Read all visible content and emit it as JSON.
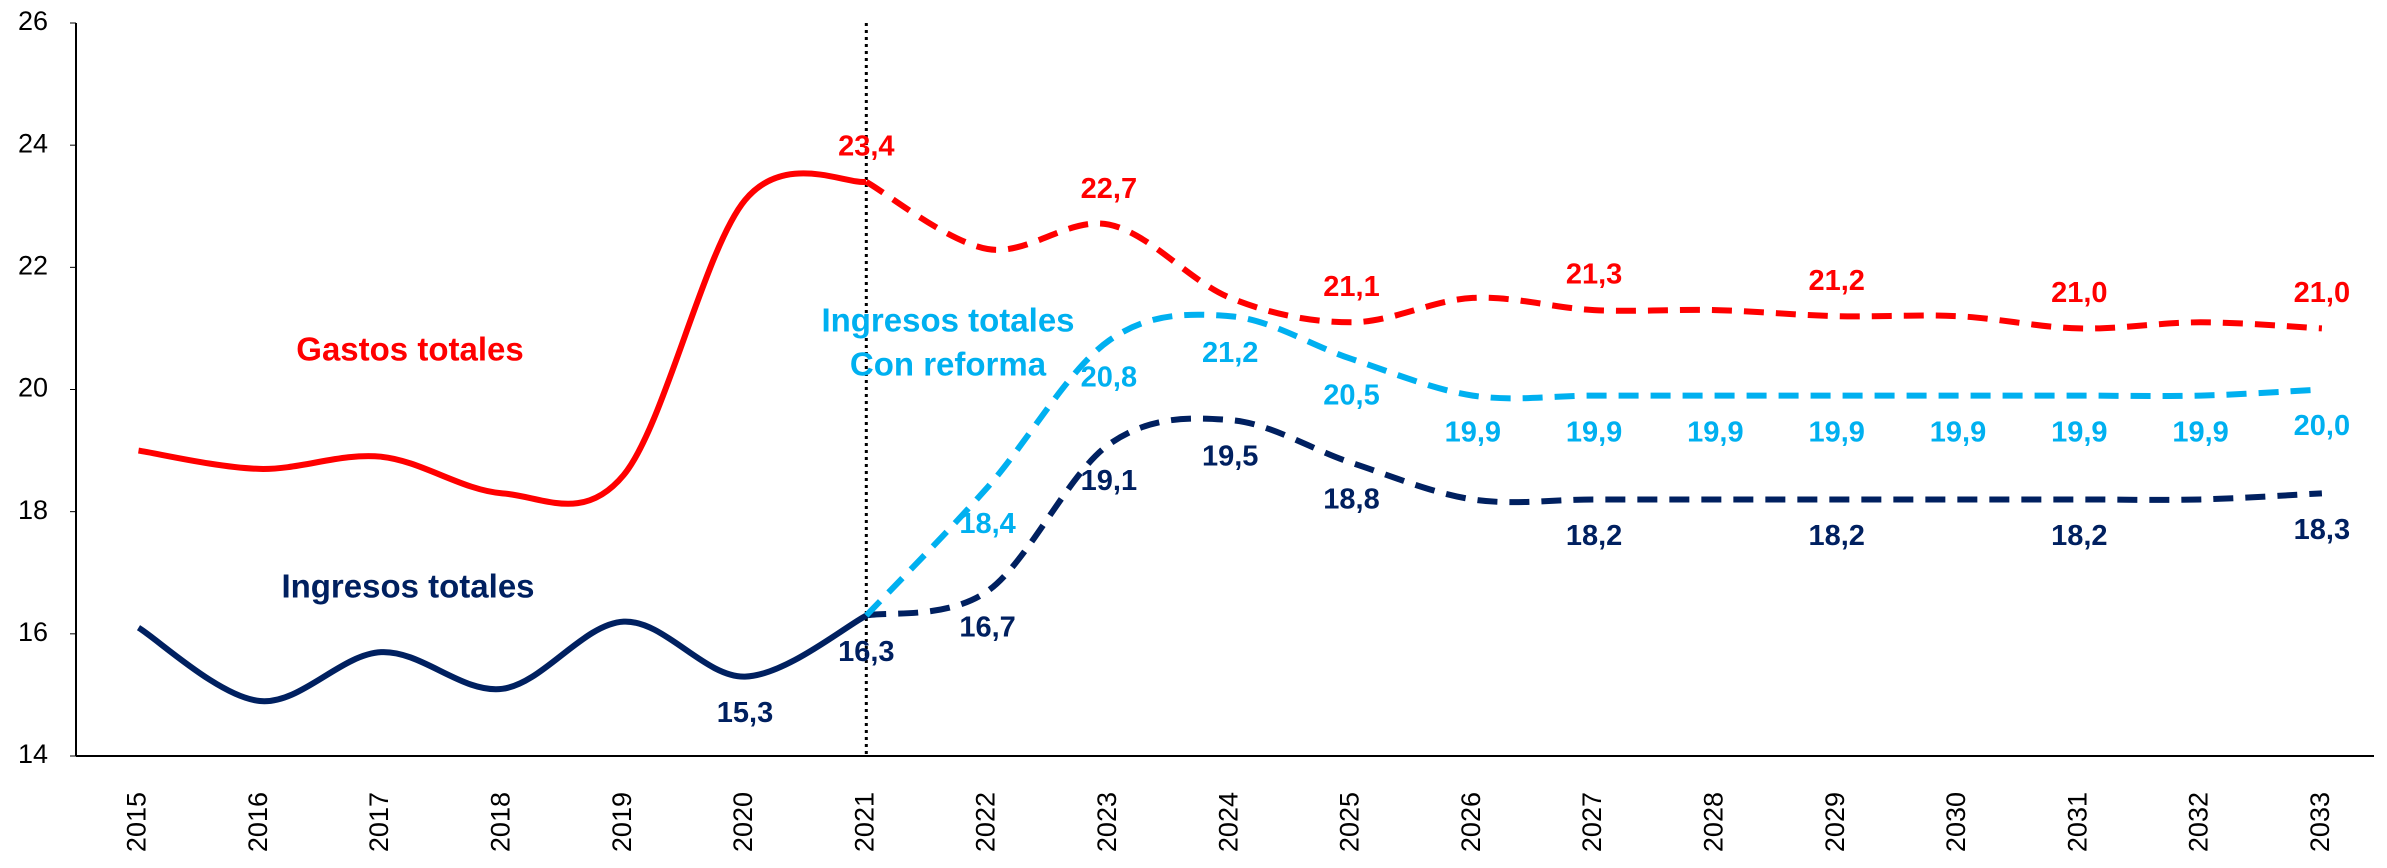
{
  "chart_data": {
    "type": "line",
    "categories": [
      "2015",
      "2016",
      "2017",
      "2018",
      "2019",
      "2020",
      "2021",
      "2022",
      "2023",
      "2024",
      "2025",
      "2026",
      "2027",
      "2028",
      "2029",
      "2030",
      "2031",
      "2032",
      "2033"
    ],
    "ylim": [
      14,
      26
    ],
    "yticks": [
      14,
      16,
      18,
      20,
      22,
      24,
      26
    ],
    "series": [
      {
        "color": "#ff0000",
        "dash": false,
        "label_position": "above",
        "values": [
          19.0,
          18.7,
          18.9,
          18.3,
          18.6,
          23.1,
          23.4,
          null,
          null,
          null,
          null,
          null,
          null,
          null,
          null,
          null,
          null,
          null,
          null
        ],
        "value_labels": [
          null,
          null,
          null,
          null,
          null,
          null,
          "23,4",
          null,
          null,
          null,
          null,
          null,
          null,
          null,
          null,
          null,
          null,
          null,
          null
        ]
      },
      {
        "color": "#ff0000",
        "dash": true,
        "label_position": "above",
        "values": [
          null,
          null,
          null,
          null,
          null,
          null,
          23.4,
          22.3,
          22.7,
          21.5,
          21.1,
          21.5,
          21.3,
          21.3,
          21.2,
          21.2,
          21.0,
          21.1,
          21.0
        ],
        "value_labels": [
          null,
          null,
          null,
          null,
          null,
          null,
          null,
          null,
          "22,7",
          null,
          "21,1",
          null,
          "21,3",
          null,
          "21,2",
          null,
          "21,0",
          null,
          "21,0"
        ]
      },
      {
        "color": "#002060",
        "dash": false,
        "label_position": "below",
        "values": [
          16.1,
          14.9,
          15.7,
          15.1,
          16.2,
          15.3,
          16.3,
          null,
          null,
          null,
          null,
          null,
          null,
          null,
          null,
          null,
          null,
          null,
          null
        ],
        "value_labels": [
          null,
          null,
          null,
          null,
          null,
          "15,3",
          "16,3",
          null,
          null,
          null,
          null,
          null,
          null,
          null,
          null,
          null,
          null,
          null,
          null
        ]
      },
      {
        "color": "#002060",
        "dash": true,
        "label_position": "below",
        "values": [
          null,
          null,
          null,
          null,
          null,
          null,
          16.3,
          16.7,
          19.1,
          19.5,
          18.8,
          18.2,
          18.2,
          18.2,
          18.2,
          18.2,
          18.2,
          18.2,
          18.3
        ],
        "value_labels": [
          null,
          null,
          null,
          null,
          null,
          null,
          null,
          "16,7",
          "19,1",
          "19,5",
          "18,8",
          null,
          "18,2",
          null,
          "18,2",
          null,
          "18,2",
          null,
          "18,3"
        ]
      },
      {
        "color": "#00b0f0",
        "dash": true,
        "label_position": "below",
        "values": [
          null,
          null,
          null,
          null,
          null,
          null,
          16.3,
          18.4,
          20.8,
          21.2,
          20.5,
          19.9,
          19.9,
          19.9,
          19.9,
          19.9,
          19.9,
          19.9,
          20.0
        ],
        "value_labels": [
          null,
          null,
          null,
          null,
          null,
          null,
          null,
          "18,4",
          "20,8",
          "21,2",
          "20,5",
          "19,9",
          "19,9",
          "19,9",
          "19,9",
          "19,9",
          "19,9",
          "19,9",
          "20,0"
        ]
      }
    ],
    "annotations": [
      {
        "lines": [
          "Gastos totales"
        ],
        "color": "#ff0000"
      },
      {
        "lines": [
          "Ingresos totales"
        ],
        "color": "#002060"
      },
      {
        "lines": [
          "Ingresos totales",
          "Con reforma"
        ],
        "color": "#00b0f0"
      }
    ]
  }
}
